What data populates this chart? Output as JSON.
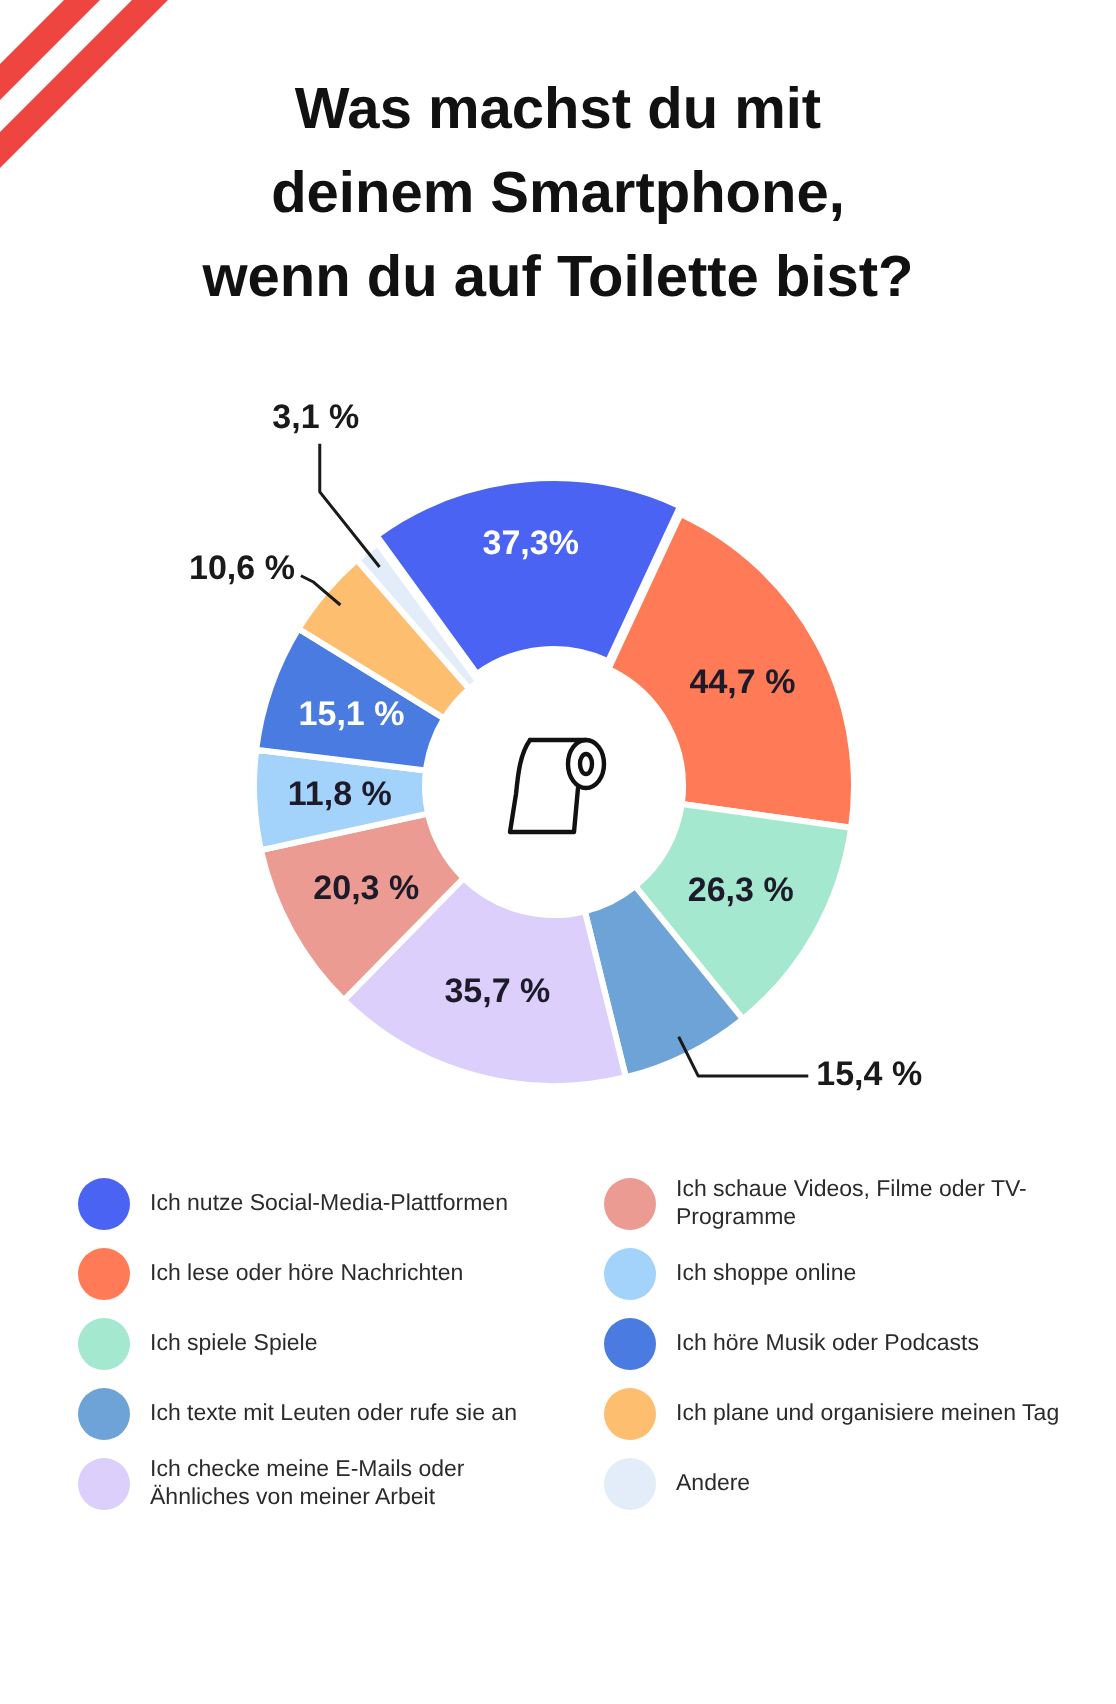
{
  "chart_data": {
    "type": "donut",
    "title": "Was machst du mit\ndeinem Smartphone,\nwenn du auf Toilette bist?",
    "categories": [
      "Ich nutze Social-Media-Plattformen",
      "Ich lese oder höre Nachrichten",
      "Ich spiele Spiele",
      "Ich texte mit Leuten oder rufe sie an",
      "Ich checke meine E-Mails oder Ähnliches von meiner Arbeit",
      "Ich schaue Videos, Filme oder TV-Programme",
      "Ich shoppe online",
      "Ich höre Musik oder Podcasts",
      "Ich plane und organisiere meinen Tag",
      "Andere"
    ],
    "values": [
      37.3,
      44.7,
      26.3,
      15.4,
      35.7,
      20.3,
      11.8,
      15.1,
      10.6,
      3.1
    ],
    "colors": [
      "#4a63f2",
      "#ff7b57",
      "#a3e8cf",
      "#6ea3d8",
      "#dccffb",
      "#ec9b93",
      "#a3d2fa",
      "#4a7be0",
      "#fdbf6f",
      "#e2edf9"
    ],
    "value_labels": [
      "37,3%",
      "44,7 %",
      "26,3 %",
      "15,4 %",
      "35,7 %",
      "20,3 %",
      "11,8 %",
      "15,1 %",
      "10,6 %",
      "3,1 %"
    ],
    "legend": "bottom"
  }
}
